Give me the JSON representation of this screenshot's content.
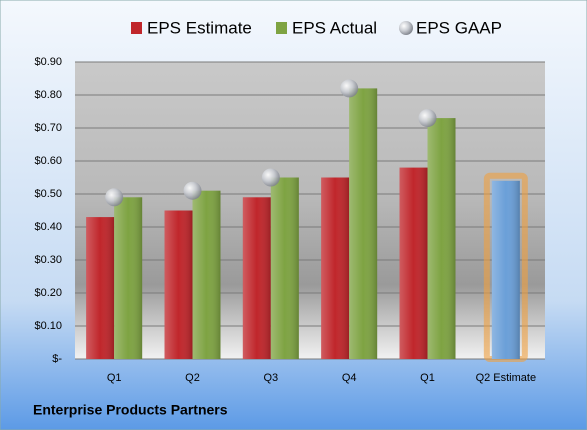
{
  "chart_data": {
    "type": "bar",
    "footer": "Enterprise Products Partners",
    "categories": [
      "Q1",
      "Q2",
      "Q3",
      "Q4",
      "Q1",
      "Q2 Estimate"
    ],
    "series": [
      {
        "name": "EPS Estimate",
        "color": "#c0262b",
        "colors": [
          "#c0262b",
          "#c0262b",
          "#c0262b",
          "#c0262b",
          "#c0262b",
          "#6a9fd8"
        ],
        "values": [
          0.43,
          0.45,
          0.49,
          0.55,
          0.58,
          0.54
        ]
      },
      {
        "name": "EPS Actual",
        "color": "#7ea342",
        "values": [
          0.49,
          0.51,
          0.55,
          0.82,
          0.73,
          null
        ]
      },
      {
        "name": "EPS GAAP",
        "color": "#b8bcc4",
        "values": [
          0.49,
          0.51,
          0.55,
          0.82,
          0.73,
          null
        ]
      }
    ],
    "ylim": [
      0,
      0.9
    ],
    "yticks": [
      {
        "value": 0,
        "label": "$-"
      },
      {
        "value": 0.1,
        "label": "$0.10"
      },
      {
        "value": 0.2,
        "label": "$0.20"
      },
      {
        "value": 0.3,
        "label": "$0.30"
      },
      {
        "value": 0.4,
        "label": "$0.40"
      },
      {
        "value": 0.5,
        "label": "$0.50"
      },
      {
        "value": 0.6,
        "label": "$0.60"
      },
      {
        "value": 0.7,
        "label": "$0.70"
      },
      {
        "value": 0.8,
        "label": "$0.80"
      },
      {
        "value": 0.9,
        "label": "$0.90"
      }
    ],
    "grid": true
  }
}
